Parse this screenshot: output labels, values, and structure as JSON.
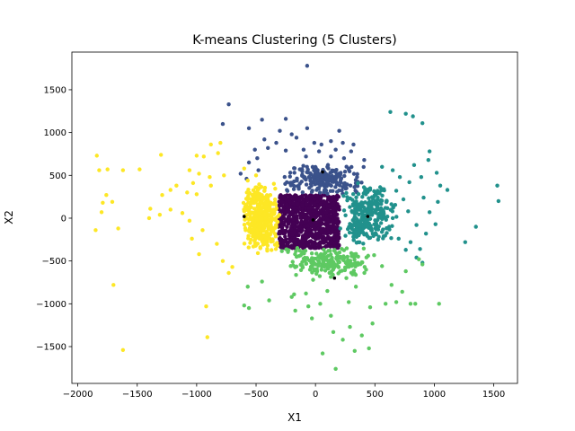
{
  "chart_data": {
    "type": "scatter",
    "title": "K-means Clustering (5 Clusters)",
    "xlabel": "X1",
    "ylabel": "X2",
    "xlim": [
      -2050,
      1700
    ],
    "ylim": [
      -1930,
      1940
    ],
    "xticks": [
      -2000,
      -1500,
      -1000,
      -500,
      0,
      500,
      1000,
      1500
    ],
    "yticks": [
      -1500,
      -1000,
      -500,
      0,
      500,
      1000,
      1500
    ],
    "xtick_labels": [
      "−2000",
      "−1500",
      "−1000",
      "−500",
      "0",
      "500",
      "1000",
      "1500"
    ],
    "ytick_labels": [
      "−1500",
      "−1000",
      "−500",
      "0",
      "500",
      "1000",
      "1500"
    ],
    "grid": false,
    "legend": "none",
    "series": [
      {
        "color": "#440154",
        "dense_region": {
          "x": [
            -310,
            200
          ],
          "y": [
            -350,
            270
          ],
          "count": 900
        },
        "points": [
          [
            -300,
            240
          ],
          [
            190,
            250
          ],
          [
            -290,
            -340
          ],
          [
            170,
            -330
          ],
          [
            -50,
            260
          ],
          [
            60,
            -350
          ],
          [
            200,
            100
          ],
          [
            -310,
            -100
          ],
          [
            100,
            265
          ],
          [
            -200,
            -345
          ],
          [
            195,
            -150
          ],
          [
            -305,
            150
          ]
        ]
      },
      {
        "color": "#3b528b",
        "dense_region": {
          "x": [
            -300,
            420
          ],
          "y": [
            260,
            650
          ],
          "count": 220
        },
        "points": [
          [
            -70,
            1780
          ],
          [
            -730,
            1330
          ],
          [
            -450,
            1150
          ],
          [
            -250,
            1160
          ],
          [
            -780,
            1100
          ],
          [
            -560,
            1050
          ],
          [
            -300,
            1020
          ],
          [
            -200,
            980
          ],
          [
            -70,
            1050
          ],
          [
            200,
            1020
          ],
          [
            -160,
            940
          ],
          [
            -10,
            880
          ],
          [
            50,
            860
          ],
          [
            130,
            900
          ],
          [
            230,
            880
          ],
          [
            320,
            860
          ],
          [
            -430,
            920
          ],
          [
            -330,
            880
          ],
          [
            -510,
            800
          ],
          [
            -400,
            820
          ],
          [
            -250,
            790
          ],
          [
            -100,
            800
          ],
          [
            30,
            780
          ],
          [
            170,
            800
          ],
          [
            300,
            780
          ],
          [
            410,
            680
          ],
          [
            -490,
            700
          ],
          [
            -560,
            650
          ],
          [
            -630,
            520
          ],
          [
            -580,
            460
          ],
          [
            -480,
            560
          ],
          [
            0,
            560
          ],
          [
            100,
            600
          ],
          [
            280,
            580
          ],
          [
            350,
            480
          ],
          [
            -80,
            720
          ],
          [
            240,
            700
          ],
          [
            130,
            720
          ]
        ]
      },
      {
        "color": "#21918c",
        "dense_region": {
          "x": [
            200,
            700
          ],
          "y": [
            -350,
            450
          ],
          "count": 280
        },
        "points": [
          [
            1530,
            380
          ],
          [
            1540,
            200
          ],
          [
            1350,
            -100
          ],
          [
            1260,
            -280
          ],
          [
            900,
            1110
          ],
          [
            820,
            1190
          ],
          [
            760,
            1220
          ],
          [
            630,
            1240
          ],
          [
            960,
            780
          ],
          [
            950,
            680
          ],
          [
            830,
            620
          ],
          [
            1020,
            530
          ],
          [
            890,
            480
          ],
          [
            790,
            420
          ],
          [
            1050,
            380
          ],
          [
            1110,
            330
          ],
          [
            1030,
            190
          ],
          [
            910,
            240
          ],
          [
            960,
            70
          ],
          [
            1010,
            -70
          ],
          [
            850,
            -80
          ],
          [
            930,
            -180
          ],
          [
            880,
            -360
          ],
          [
            800,
            -280
          ],
          [
            900,
            -520
          ],
          [
            850,
            -460
          ],
          [
            760,
            -370
          ],
          [
            700,
            -240
          ],
          [
            620,
            -100
          ],
          [
            560,
            600
          ],
          [
            650,
            560
          ],
          [
            710,
            480
          ],
          [
            680,
            320
          ],
          [
            740,
            220
          ],
          [
            780,
            80
          ],
          [
            600,
            200
          ],
          [
            650,
            0
          ]
        ]
      },
      {
        "color": "#5ec962",
        "dense_region": {
          "x": [
            -300,
            500
          ],
          "y": [
            -700,
            -330
          ],
          "count": 200
        },
        "points": [
          [
            170,
            -1760
          ],
          [
            60,
            -1580
          ],
          [
            330,
            -1550
          ],
          [
            450,
            -1520
          ],
          [
            230,
            -1420
          ],
          [
            390,
            -1370
          ],
          [
            150,
            -1330
          ],
          [
            290,
            -1270
          ],
          [
            480,
            -1230
          ],
          [
            -30,
            -1170
          ],
          [
            130,
            -1140
          ],
          [
            -170,
            -1080
          ],
          [
            -560,
            -1050
          ],
          [
            -600,
            -1020
          ],
          [
            -60,
            -1030
          ],
          [
            40,
            -1000
          ],
          [
            280,
            -980
          ],
          [
            460,
            -1040
          ],
          [
            590,
            -1000
          ],
          [
            680,
            -980
          ],
          [
            800,
            -1000
          ],
          [
            840,
            -1000
          ],
          [
            1040,
            -1000
          ],
          [
            -390,
            -960
          ],
          [
            -200,
            -920
          ],
          [
            -180,
            -890
          ],
          [
            -80,
            -880
          ],
          [
            100,
            -850
          ],
          [
            340,
            -800
          ],
          [
            640,
            -780
          ],
          [
            730,
            -860
          ],
          [
            -570,
            -800
          ],
          [
            -450,
            -740
          ],
          [
            -20,
            -720
          ],
          [
            260,
            -700
          ],
          [
            900,
            -540
          ],
          [
            870,
            -480
          ],
          [
            760,
            -620
          ],
          [
            560,
            -560
          ]
        ]
      },
      {
        "color": "#fde725",
        "dense_region": {
          "x": [
            -620,
            -300
          ],
          "y": [
            -420,
            420
          ],
          "count": 420
        },
        "points": [
          [
            -1840,
            730
          ],
          [
            -1820,
            560
          ],
          [
            -1750,
            570
          ],
          [
            -1620,
            560
          ],
          [
            -1480,
            570
          ],
          [
            -1300,
            740
          ],
          [
            -1000,
            730
          ],
          [
            -940,
            720
          ],
          [
            -880,
            860
          ],
          [
            -800,
            880
          ],
          [
            -820,
            760
          ],
          [
            -1060,
            560
          ],
          [
            -980,
            520
          ],
          [
            -890,
            480
          ],
          [
            -1030,
            410
          ],
          [
            -1170,
            380
          ],
          [
            -1220,
            330
          ],
          [
            -1080,
            300
          ],
          [
            -1000,
            280
          ],
          [
            -880,
            380
          ],
          [
            -770,
            500
          ],
          [
            -1290,
            270
          ],
          [
            -1760,
            270
          ],
          [
            -1710,
            190
          ],
          [
            -1790,
            180
          ],
          [
            -1800,
            70
          ],
          [
            -1850,
            -140
          ],
          [
            -1660,
            -120
          ],
          [
            -1390,
            110
          ],
          [
            -1310,
            40
          ],
          [
            -1400,
            0
          ],
          [
            -1220,
            100
          ],
          [
            -1120,
            60
          ],
          [
            -1060,
            -30
          ],
          [
            -950,
            -140
          ],
          [
            -1040,
            -240
          ],
          [
            -980,
            -420
          ],
          [
            -830,
            -300
          ],
          [
            -780,
            -500
          ],
          [
            -730,
            -640
          ],
          [
            -700,
            -570
          ],
          [
            -920,
            -1030
          ],
          [
            -910,
            -1390
          ],
          [
            -1700,
            -780
          ],
          [
            -1620,
            -1540
          ],
          [
            -600,
            580
          ],
          [
            -570,
            440
          ],
          [
            -500,
            500
          ]
        ]
      }
    ],
    "centroids": [
      [
        -20,
        -20
      ],
      [
        60,
        540
      ],
      [
        440,
        20
      ],
      [
        160,
        -700
      ],
      [
        -600,
        20
      ]
    ]
  }
}
